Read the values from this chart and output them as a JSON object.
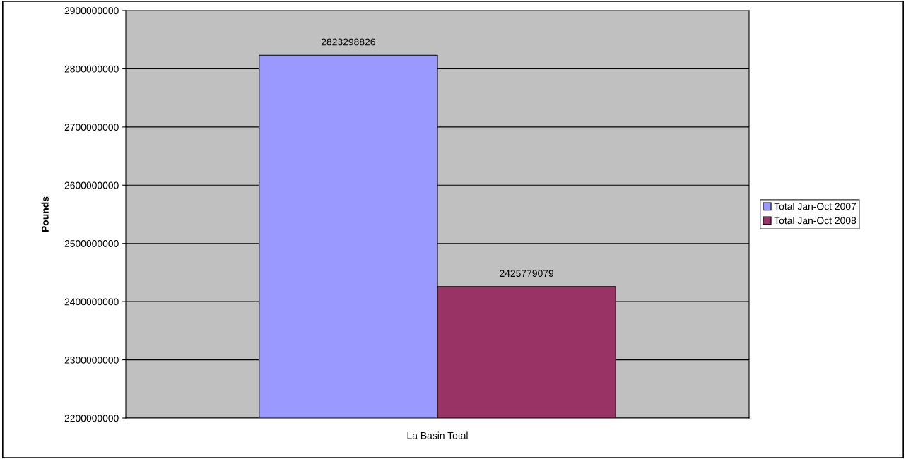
{
  "chart_data": {
    "type": "bar",
    "ylabel": "Pounds",
    "categories": [
      "La Basin Total"
    ],
    "series": [
      {
        "name": "Total Jan-Oct 2007",
        "color": "#9999ff",
        "values": [
          2823298826
        ]
      },
      {
        "name": "Total Jan-Oct 2008",
        "color": "#993366",
        "values": [
          2425779079
        ]
      }
    ],
    "ylim": [
      2200000000,
      2900000000
    ],
    "yticks": [
      2200000000,
      2300000000,
      2400000000,
      2500000000,
      2600000000,
      2700000000,
      2800000000,
      2900000000
    ],
    "grid": "y",
    "legend": "right",
    "data_labels": true
  }
}
